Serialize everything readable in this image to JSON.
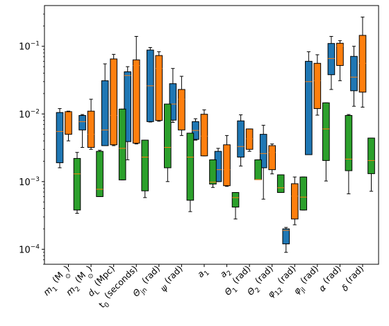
{
  "chart_data": {
    "type": "box",
    "title": "",
    "xlabel": "",
    "ylabel": "",
    "yscale": "log",
    "ylim": [
      6e-05,
      0.4
    ],
    "y_ticks": [
      {
        "value": 0.0001,
        "base": "10",
        "exp": "−4"
      },
      {
        "value": 0.001,
        "base": "10",
        "exp": "−3"
      },
      {
        "value": 0.01,
        "base": "10",
        "exp": "−2"
      },
      {
        "value": 0.1,
        "base": "10",
        "exp": "−1"
      }
    ],
    "colors": {
      "series_blue": "#1f77b4",
      "series_orange": "#ff7f0e",
      "series_green": "#2ca02c",
      "median_line": "#ff7f0e"
    },
    "categories": [
      {
        "main": "m",
        "sub": "1",
        "rest": " (M",
        "sun": "⊙",
        "end": ")"
      },
      {
        "main": "m",
        "sub": "2",
        "rest": " (M",
        "sun": "⊙",
        "end": ")"
      },
      {
        "main": "d",
        "sub": "L",
        "rest": " (Mpc)",
        "sun": "",
        "end": ""
      },
      {
        "main": "t",
        "sub": "0",
        "rest": " (seconds)",
        "sun": "",
        "end": "",
        "upright": true
      },
      {
        "main": "Θ",
        "sub": "jn",
        "rest": " (rad)",
        "sun": "",
        "end": ""
      },
      {
        "main": "ψ",
        "sub": "",
        "rest": " (rad)",
        "sun": "",
        "end": ""
      },
      {
        "main": "a",
        "sub": "1",
        "rest": "",
        "sun": "",
        "end": ""
      },
      {
        "main": "a",
        "sub": "2",
        "rest": "",
        "sun": "",
        "end": ""
      },
      {
        "main": "Θ",
        "sub": "1",
        "rest": " (rad)",
        "sun": "",
        "end": ""
      },
      {
        "main": "Θ",
        "sub": "2",
        "rest": " (rad)",
        "sun": "",
        "end": ""
      },
      {
        "main": "φ",
        "sub": "12",
        "rest": " (rad)",
        "sun": "",
        "end": ""
      },
      {
        "main": "φ",
        "sub": "jl",
        "rest": " (rad)",
        "sun": "",
        "end": ""
      },
      {
        "main": "α",
        "sub": "",
        "rest": " (rad)",
        "sun": "",
        "end": ""
      },
      {
        "main": "δ",
        "sub": "",
        "rest": " (rad)",
        "sun": "",
        "end": ""
      }
    ],
    "series": [
      {
        "color": "#1f77b4",
        "boxes": [
          {
            "whislo": 0.0016,
            "q1": 0.0019,
            "med": 0.0055,
            "q3": 0.0105,
            "whishi": 0.012
          },
          {
            "whislo": 0.0032,
            "q1": 0.0058,
            "med": 0.0077,
            "q3": 0.0095,
            "whishi": 0.0098
          },
          {
            "whislo": 0.0034,
            "q1": 0.0034,
            "med": 0.0058,
            "q3": 0.031,
            "whishi": 0.055
          },
          {
            "whislo": 0.0021,
            "q1": 0.0039,
            "med": 0.037,
            "q3": 0.042,
            "whishi": 0.05
          },
          {
            "whislo": 0.0076,
            "q1": 0.0077,
            "med": 0.026,
            "q3": 0.088,
            "whishi": 0.096
          },
          {
            "whislo": 0.0075,
            "q1": 0.0081,
            "med": 0.014,
            "q3": 0.028,
            "whishi": 0.047
          },
          {
            "whislo": 0.0041,
            "q1": 0.0042,
            "med": 0.0057,
            "q3": 0.0077,
            "whishi": 0.0085
          },
          {
            "whislo": 0.001,
            "q1": 0.001,
            "med": 0.0015,
            "q3": 0.0028,
            "whishi": 0.0031
          },
          {
            "whislo": 0.0017,
            "q1": 0.0023,
            "med": 0.0033,
            "q3": 0.0079,
            "whishi": 0.0097
          },
          {
            "whislo": 0.00055,
            "q1": 0.0016,
            "med": 0.0026,
            "q3": 0.005,
            "whishi": 0.0068
          },
          {
            "whislo": 9e-05,
            "q1": 0.00012,
            "med": 0.00019,
            "q3": 0.0002,
            "whishi": 0.00021
          },
          {
            "whislo": 0.0025,
            "q1": 0.0025,
            "med": 0.03,
            "q3": 0.06,
            "whishi": 0.083
          },
          {
            "whislo": 0.023,
            "q1": 0.038,
            "med": 0.066,
            "q3": 0.11,
            "whishi": 0.14
          },
          {
            "whislo": 0.013,
            "q1": 0.022,
            "med": 0.035,
            "q3": 0.071,
            "whishi": 0.1
          }
        ]
      },
      {
        "color": "#ff7f0e",
        "boxes": [
          {
            "whislo": 0.004,
            "q1": 0.005,
            "med": 0.0105,
            "q3": 0.0108,
            "whishi": 0.011
          },
          {
            "whislo": 0.003,
            "q1": 0.0032,
            "med": 0.005,
            "q3": 0.011,
            "whishi": 0.0165
          },
          {
            "whislo": 0.0034,
            "q1": 0.0035,
            "med": 0.0095,
            "q3": 0.065,
            "whishi": 0.076
          },
          {
            "whislo": 0.0036,
            "q1": 0.0037,
            "med": 0.052,
            "q3": 0.063,
            "whishi": 0.14
          },
          {
            "whislo": 0.0078,
            "q1": 0.008,
            "med": 0.047,
            "q3": 0.073,
            "whishi": 0.083
          },
          {
            "whislo": 0.0048,
            "q1": 0.0058,
            "med": 0.0165,
            "q3": 0.023,
            "whishi": 0.036
          },
          {
            "whislo": 0.0024,
            "q1": 0.0024,
            "med": 0.0047,
            "q3": 0.0099,
            "whishi": 0.0115
          },
          {
            "whislo": 0.00085,
            "q1": 0.00087,
            "med": 0.0015,
            "q3": 0.0035,
            "whishi": 0.0048
          },
          {
            "whislo": 0.0028,
            "q1": 0.003,
            "med": 0.0043,
            "q3": 0.006,
            "whishi": 0.006
          },
          {
            "whislo": 0.0013,
            "q1": 0.0015,
            "med": 0.0027,
            "q3": 0.0034,
            "whishi": 0.0036
          },
          {
            "whislo": 0.00023,
            "q1": 0.00028,
            "med": 0.00061,
            "q3": 0.00093,
            "whishi": 0.00117
          },
          {
            "whislo": 0.0096,
            "q1": 0.012,
            "med": 0.031,
            "q3": 0.056,
            "whishi": 0.075
          },
          {
            "whislo": 0.031,
            "q1": 0.052,
            "med": 0.101,
            "q3": 0.111,
            "whishi": 0.121
          },
          {
            "whislo": 0.0126,
            "q1": 0.021,
            "med": 0.056,
            "q3": 0.145,
            "whishi": 0.27
          }
        ]
      },
      {
        "color": "#2ca02c",
        "boxes": [
          {
            "whislo": 0.00034,
            "q1": 0.00038,
            "med": 0.0013,
            "q3": 0.0022,
            "whishi": 0.0027
          },
          {
            "whislo": 0.0006,
            "q1": 0.0006,
            "med": 0.00077,
            "q3": 0.0028,
            "whishi": 0.0029
          },
          {
            "whislo": 0.00106,
            "q1": 0.00106,
            "med": 0.0031,
            "q3": 0.0118,
            "whishi": 0.0118
          },
          {
            "whislo": 0.00058,
            "q1": 0.00073,
            "med": 0.0023,
            "q3": 0.0041,
            "whishi": 0.0041
          },
          {
            "whislo": 0.001,
            "q1": 0.0016,
            "med": 0.0032,
            "q3": 0.014,
            "whishi": 0.014
          },
          {
            "whislo": 0.00036,
            "q1": 0.00053,
            "med": 0.0023,
            "q3": 0.0052,
            "whishi": 0.0052
          },
          {
            "whislo": 0.00082,
            "q1": 0.00092,
            "med": 0.00098,
            "q3": 0.0021,
            "whishi": 0.0021
          },
          {
            "whislo": 0.00028,
            "q1": 0.00042,
            "med": 0.00058,
            "q3": 0.00069,
            "whishi": 0.00069
          },
          {
            "whislo": 0.00107,
            "q1": 0.00107,
            "med": 0.00107,
            "q3": 0.0021,
            "whishi": 0.0021
          },
          {
            "whislo": 0.00069,
            "q1": 0.00069,
            "med": 0.00081,
            "q3": 0.00126,
            "whishi": 0.00126
          },
          {
            "whislo": 0.00038,
            "q1": 0.00038,
            "med": 0.00059,
            "q3": 0.00117,
            "whishi": 0.00117
          },
          {
            "whislo": 0.00102,
            "q1": 0.00205,
            "med": 0.006,
            "q3": 0.0146,
            "whishi": 0.0146
          },
          {
            "whislo": 0.00066,
            "q1": 0.00145,
            "med": 0.00215,
            "q3": 0.0095,
            "whishi": 0.0098
          },
          {
            "whislo": 0.00072,
            "q1": 0.00131,
            "med": 0.00205,
            "q3": 0.0044,
            "whishi": 0.0044
          }
        ]
      }
    ]
  }
}
